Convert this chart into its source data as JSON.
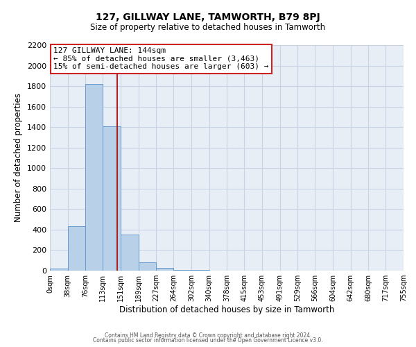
{
  "title": "127, GILLWAY LANE, TAMWORTH, B79 8PJ",
  "subtitle": "Size of property relative to detached houses in Tamworth",
  "xlabel": "Distribution of detached houses by size in Tamworth",
  "ylabel": "Number of detached properties",
  "bin_edges": [
    0,
    38,
    76,
    113,
    151,
    189,
    227,
    264,
    302,
    340,
    378,
    415,
    453,
    491,
    529,
    566,
    604,
    642,
    680,
    717,
    755
  ],
  "bin_labels": [
    "0sqm",
    "38sqm",
    "76sqm",
    "113sqm",
    "151sqm",
    "189sqm",
    "227sqm",
    "264sqm",
    "302sqm",
    "340sqm",
    "378sqm",
    "415sqm",
    "453sqm",
    "491sqm",
    "529sqm",
    "566sqm",
    "604sqm",
    "642sqm",
    "680sqm",
    "717sqm",
    "755sqm"
  ],
  "counts": [
    20,
    430,
    1820,
    1410,
    350,
    80,
    25,
    10,
    5,
    2,
    0,
    0,
    0,
    0,
    0,
    0,
    0,
    0,
    0,
    0
  ],
  "bar_color": "#b8d0e8",
  "bar_edge_color": "#6699cc",
  "grid_color": "#c8d4e4",
  "background_color": "#e8eef6",
  "property_size": 144,
  "red_line_color": "#aa2222",
  "annotation_text_line1": "127 GILLWAY LANE: 144sqm",
  "annotation_text_line2": "← 85% of detached houses are smaller (3,463)",
  "annotation_text_line3": "15% of semi-detached houses are larger (603) →",
  "annotation_box_color": "#cc2222",
  "ylim": [
    0,
    2200
  ],
  "yticks": [
    0,
    200,
    400,
    600,
    800,
    1000,
    1200,
    1400,
    1600,
    1800,
    2000,
    2200
  ],
  "footer_line1": "Contains HM Land Registry data © Crown copyright and database right 2024.",
  "footer_line2": "Contains public sector information licensed under the Open Government Licence v3.0."
}
